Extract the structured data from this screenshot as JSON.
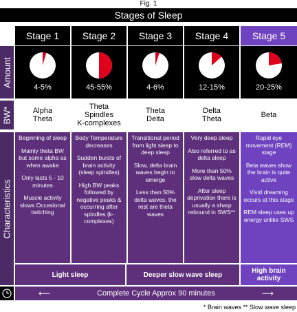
{
  "figure_label": "Fig. 1",
  "title": "Stages of Sleep",
  "row_labels": {
    "amount": "Amount",
    "bw": "BW*",
    "characteristics": "Characteristics"
  },
  "stages": [
    {
      "name": "Stage 1",
      "percent_label": "4-5%",
      "fraction": 0.045,
      "bw": [
        "Alpha",
        "Theta"
      ],
      "characteristics": [
        "Beginning of sleep",
        "Mainly theta BW but some alpha as when awake",
        "Only lasts 5 - 10 minutes",
        "Muscle activity slows Occasional twitching"
      ]
    },
    {
      "name": "Stage 2",
      "percent_label": "45-55%",
      "fraction": 0.5,
      "bw": [
        "Theta",
        "Spindles",
        "K-complexes"
      ],
      "characteristics": [
        "Body Temperature decreases",
        "Sudden bursts of brain activity (sleep spindles)",
        "High BW peaks followed by negative peaks & occurring after spindles (k-complexes)"
      ]
    },
    {
      "name": "Stage 3",
      "percent_label": "4-6%",
      "fraction": 0.05,
      "bw": [
        "Theta",
        "Delta"
      ],
      "characteristics": [
        "Transitional period from light sleep to deep sleep",
        "Slow, delta brain waves begin to emerge",
        "Less than 50% delta waves, the rest are theta waves"
      ]
    },
    {
      "name": "Stage 4",
      "percent_label": "12-15%",
      "fraction": 0.135,
      "bw": [
        "Delta",
        "Theta"
      ],
      "characteristics": [
        "Very deep sleep",
        "Also referred to as delta sleep",
        "More than 50% slow delta waves",
        "After sleep deprivation there is usually a sharp rebound in SWS**"
      ]
    },
    {
      "name": "Stage 5",
      "percent_label": "20-25%",
      "fraction": 0.225,
      "bw": [
        "Beta"
      ],
      "characteristics": [
        "Rapid eye movement (REM) stage",
        "Beta waves show the brain is quite active",
        "Vivid dreaming occurs at this stage",
        "REM sleep uses up energy unlike SWS"
      ]
    }
  ],
  "groups": {
    "light": "Light sleep",
    "deeper": "Deeper slow wave sleep",
    "high": "High brain activity"
  },
  "cycle": "Complete Cycle Approx 90 minutes",
  "footnote": "* Brain waves  ** Slow wave sleep",
  "colors": {
    "pie_fill": "#e0001b",
    "pie_bg": "#ffffff",
    "purple": "#5e2f7a",
    "rem": "#6f43c0"
  },
  "icons": {
    "clock": "clock-icon",
    "arrow_left": "arrow-left-icon",
    "arrow_right": "arrow-right-icon"
  }
}
